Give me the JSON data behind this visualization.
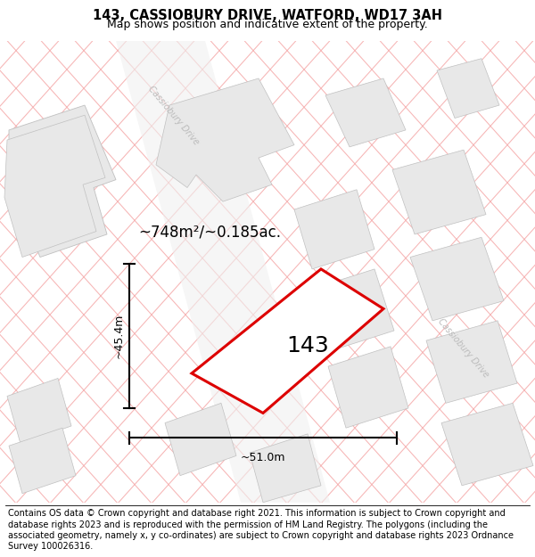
{
  "title_line1": "143, CASSIOBURY DRIVE, WATFORD, WD17 3AH",
  "title_line2": "Map shows position and indicative extent of the property.",
  "footer_text": "Contains OS data © Crown copyright and database right 2021. This information is subject to Crown copyright and database rights 2023 and is reproduced with the permission of HM Land Registry. The polygons (including the associated geometry, namely x, y co-ordinates) are subject to Crown copyright and database rights 2023 Ordnance Survey 100026316.",
  "pink_line": "#f5a8a8",
  "red_polygon_color": "#dd0000",
  "area_label": "~748m²/~0.185ac.",
  "number_label": "143",
  "width_label": "~51.0m",
  "height_label": "~45.4m",
  "cassiobury_drive_label": "Cassiobury Drive",
  "title_fontsize": 10.5,
  "subtitle_fontsize": 9,
  "footer_fontsize": 7,
  "map_bg": "#ffffff",
  "building_fill": "#e8e8e8",
  "building_edge": "#c0c0c0",
  "road_label_color": "#bbbbbb"
}
